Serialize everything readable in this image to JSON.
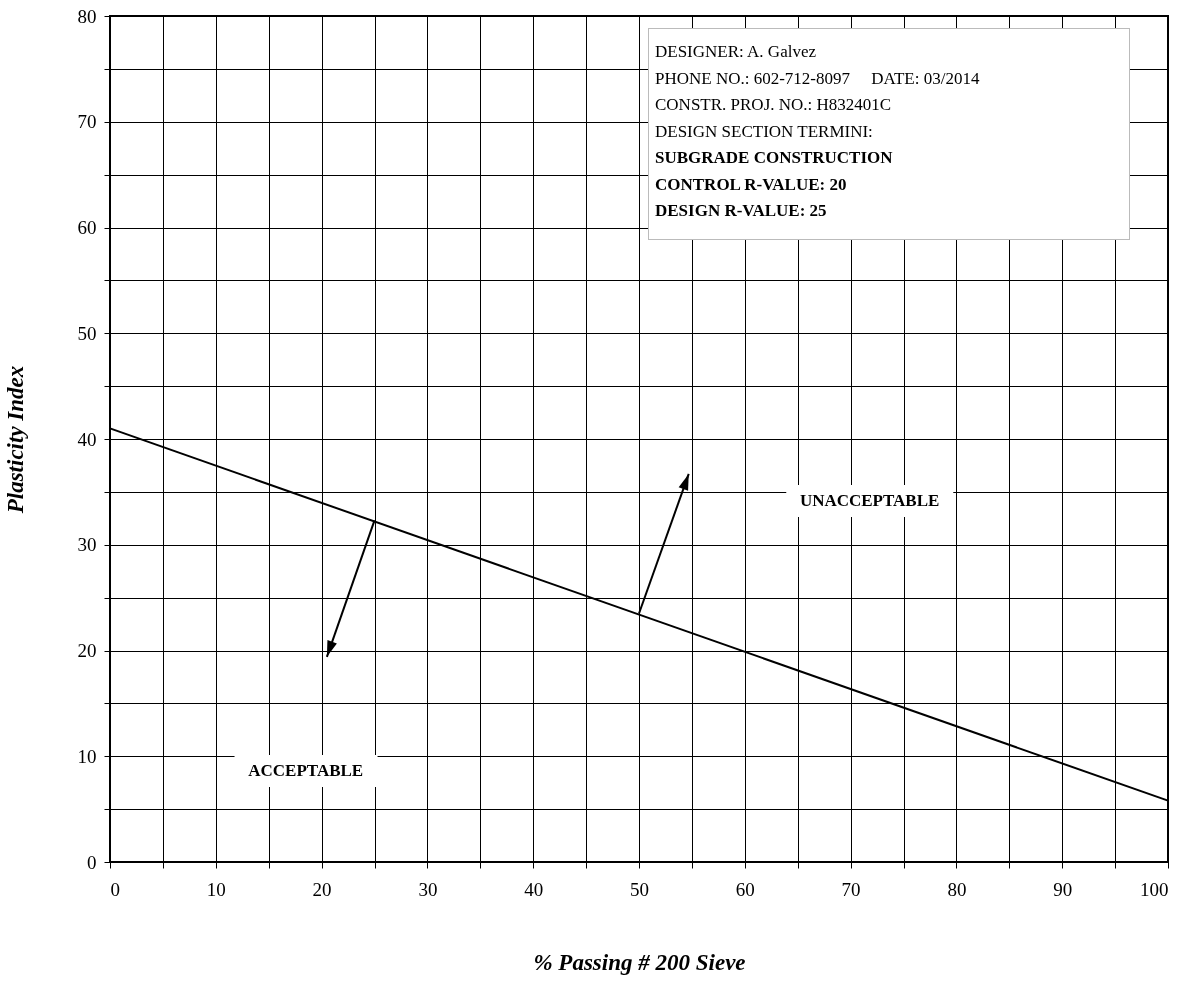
{
  "chart_data": {
    "type": "line",
    "xlabel": "% Passing # 200 Sieve",
    "ylabel": "Plasticity Index",
    "x": [
      0,
      100
    ],
    "series": [
      {
        "color": "#000000",
        "values": [
          41,
          5.8
        ]
      }
    ],
    "xlim": [
      0,
      100
    ],
    "ylim": [
      0,
      80
    ],
    "xticks": [
      0,
      {
        "value": 5,
        "label": null
      },
      10,
      {
        "value": 15,
        "label": null
      },
      20,
      {
        "value": 25,
        "label": null
      },
      30,
      {
        "value": 35,
        "label": null
      },
      40,
      {
        "value": 45,
        "label": null
      },
      50,
      {
        "value": 55,
        "label": null
      },
      60,
      {
        "value": 65,
        "label": null
      },
      70,
      {
        "value": 75,
        "label": null
      },
      80,
      {
        "value": 85,
        "label": null
      },
      90,
      {
        "value": 95,
        "label": null
      },
      100
    ],
    "yticks": [
      0,
      {
        "value": 5,
        "label": null
      },
      10,
      {
        "value": 15,
        "label": null
      },
      20,
      {
        "value": 25,
        "label": null
      },
      30,
      {
        "value": 35,
        "label": null
      },
      40,
      {
        "value": 45,
        "label": null
      },
      50,
      {
        "value": 55,
        "label": null
      },
      60,
      {
        "value": 65,
        "label": null
      },
      70,
      {
        "value": 75,
        "label": null
      },
      80
    ],
    "grid": true,
    "marker": "none",
    "line_style": "solid",
    "annotations": [
      "DESIGNER: A. Galvez",
      "PHONE NO.: 602-712-8097     DATE: 03/2014",
      "CONSTR. PROJ. NO.: H832401C",
      "DESIGN SECTION TERMINI:",
      "SUBGRADE CONSTRUCTION",
      "CONTROL R-VALUE: 20",
      "DESIGN R-VALUE: 25",
      "ACCEPTABLE",
      "UNACCEPTABLE"
    ]
  }
}
